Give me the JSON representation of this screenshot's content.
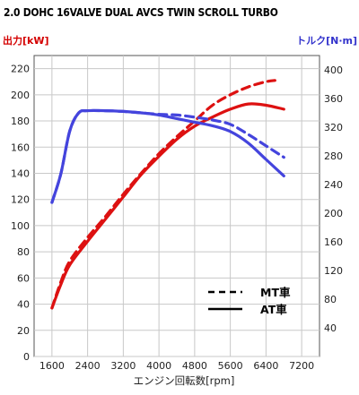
{
  "chart_data": {
    "type": "line",
    "title": "2.0 DOHC 16VALVE DUAL AVCS TWIN SCROLL TURBO",
    "y_left_label": "出力[kW]",
    "y_right_label": "トルク[N·m]",
    "xlabel": "エンジン回転数[rpm]",
    "xlim": [
      1200,
      7600
    ],
    "ylim_left": [
      0,
      230
    ],
    "ylim_right": [
      0,
      420
    ],
    "x_ticks": [
      "1600",
      "2400",
      "3200",
      "4000",
      "4800",
      "5600",
      "6400",
      "7200"
    ],
    "y_left_ticks": [
      "0",
      "20",
      "40",
      "60",
      "80",
      "100",
      "120",
      "140",
      "160",
      "180",
      "200",
      "220"
    ],
    "y_right_ticks": [
      "40",
      "80",
      "120",
      "160",
      "200",
      "240",
      "280",
      "320",
      "360",
      "400"
    ],
    "grid": true,
    "legend": {
      "position": "bottom-right",
      "entries": [
        {
          "label": "MT車",
          "style": "dashed"
        },
        {
          "label": "AT車",
          "style": "solid"
        }
      ]
    },
    "series": [
      {
        "quantity": "power",
        "variant": "MT",
        "axis": "left",
        "color": "#dd1111",
        "style": "dashed",
        "x": [
          1600,
          1800,
          2000,
          2400,
          2800,
          3200,
          3600,
          4000,
          4400,
          4800,
          5200,
          5600,
          6000,
          6400,
          6600
        ],
        "y": [
          37,
          57,
          73,
          91,
          107,
          124,
          140,
          155,
          168,
          180,
          192,
          200,
          206,
          210,
          211
        ]
      },
      {
        "quantity": "power",
        "variant": "AT",
        "axis": "left",
        "color": "#dd1111",
        "style": "solid",
        "x": [
          1600,
          1800,
          2000,
          2400,
          2800,
          3200,
          3600,
          4000,
          4400,
          4800,
          5200,
          5600,
          6000,
          6400,
          6800
        ],
        "y": [
          37,
          55,
          70,
          88,
          105,
          122,
          139,
          153,
          166,
          176,
          183,
          189,
          193,
          192,
          189
        ]
      },
      {
        "quantity": "torque",
        "variant": "MT",
        "axis": "right",
        "color": "#4444dd",
        "style": "dashed",
        "x": [
          1600,
          1800,
          2000,
          2200,
          2400,
          2800,
          3200,
          3600,
          4000,
          4400,
          4800,
          5200,
          5600,
          6000,
          6400,
          6800
        ],
        "y": [
          215,
          255,
          315,
          340,
          343,
          343,
          342,
          340,
          338,
          337,
          334,
          330,
          324,
          310,
          294,
          278
        ]
      },
      {
        "quantity": "torque",
        "variant": "AT",
        "axis": "right",
        "color": "#4444dd",
        "style": "solid",
        "x": [
          1600,
          1800,
          2000,
          2200,
          2400,
          2800,
          3200,
          3600,
          4000,
          4400,
          4800,
          5200,
          5600,
          6000,
          6400,
          6800
        ],
        "y": [
          215,
          255,
          315,
          340,
          343,
          343,
          342,
          340,
          337,
          332,
          327,
          322,
          314,
          298,
          275,
          252
        ]
      }
    ]
  }
}
